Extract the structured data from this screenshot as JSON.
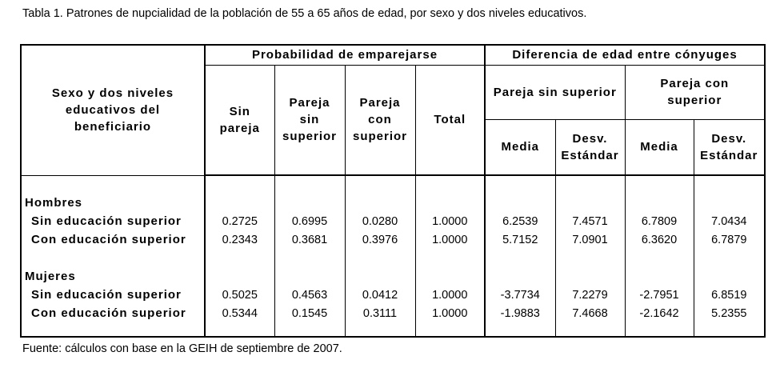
{
  "title": "Tabla 1. Patrones de nupcialidad de la población de 55 a 65 años de edad, por sexo y dos niveles educativos.",
  "table": {
    "stub_header": "Sexo y dos niveles educativos del beneficiario",
    "groups": [
      {
        "label": "Probabilidad de emparejarse",
        "columns": [
          "Sin pareja",
          "Pareja sin superior",
          "Pareja con superior",
          "Total"
        ]
      },
      {
        "label": "Diferencia de edad entre cónyuges",
        "subgroups": [
          {
            "label": "Pareja sin superior",
            "columns": [
              "Media",
              "Desv. Estándar"
            ]
          },
          {
            "label": "Pareja con superior",
            "columns": [
              "Media",
              "Desv. Estándar"
            ]
          }
        ]
      }
    ],
    "sections": [
      {
        "label": "Hombres",
        "rows": [
          {
            "label": "Sin educación superior",
            "values": [
              "0.2725",
              "0.6995",
              "0.0280",
              "1.0000",
              "6.2539",
              "7.4571",
              "6.7809",
              "7.0434"
            ]
          },
          {
            "label": "Con educación superior",
            "values": [
              "0.2343",
              "0.3681",
              "0.3976",
              "1.0000",
              "5.7152",
              "7.0901",
              "6.3620",
              "6.7879"
            ]
          }
        ]
      },
      {
        "label": "Mujeres",
        "rows": [
          {
            "label": "Sin educación superior",
            "values": [
              "0.5025",
              "0.4563",
              "0.0412",
              "1.0000",
              "-3.7734",
              "7.2279",
              "-2.7951",
              "6.8519"
            ]
          },
          {
            "label": "Con educación superior",
            "values": [
              "0.5344",
              "0.1545",
              "0.3111",
              "1.0000",
              "-1.9883",
              "7.4668",
              "-2.1642",
              "5.2355"
            ]
          }
        ]
      }
    ]
  },
  "footer": "Fuente: cálculos con base en la GEIH de septiembre de 2007."
}
